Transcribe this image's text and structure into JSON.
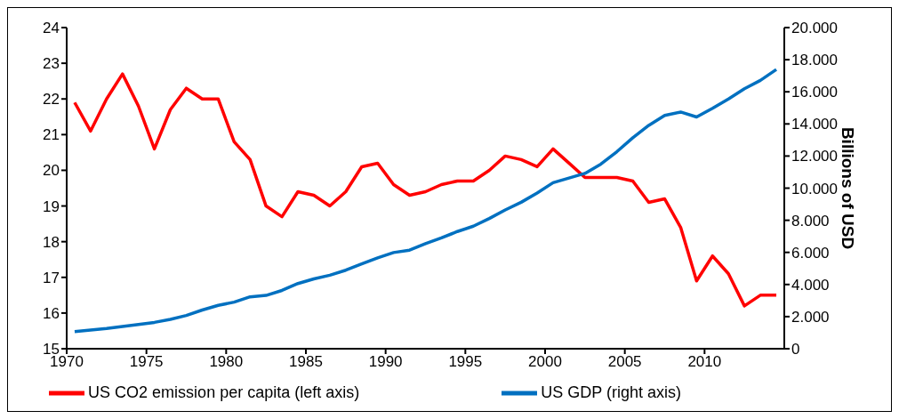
{
  "chart_data": {
    "type": "line",
    "x": [
      1970.5,
      1971.5,
      1972.5,
      1973.5,
      1974.5,
      1975.5,
      1976.5,
      1977.5,
      1978.5,
      1979.5,
      1980.5,
      1981.5,
      1982.5,
      1983.5,
      1984.5,
      1985.5,
      1986.5,
      1987.5,
      1988.5,
      1989.5,
      1990.5,
      1991.5,
      1992.5,
      1993.5,
      1994.5,
      1995.5,
      1996.5,
      1997.5,
      1998.5,
      1999.5,
      2000.5,
      2001.5,
      2002.5,
      2003.5,
      2004.5,
      2005.5,
      2006.5,
      2007.5,
      2008.5,
      2009.5,
      2010.5,
      2011.5,
      2012.5,
      2013.5,
      2014.5
    ],
    "series": [
      {
        "name": "US CO2 emission per capita (left axis)",
        "color": "#ff0000",
        "axis": "y",
        "values": [
          21.9,
          21.1,
          22.0,
          22.7,
          21.8,
          20.6,
          21.7,
          22.3,
          22.0,
          22.0,
          20.8,
          20.3,
          19.0,
          18.7,
          19.4,
          19.3,
          19.0,
          19.4,
          20.1,
          20.2,
          19.6,
          19.3,
          19.4,
          19.6,
          19.7,
          19.7,
          20.0,
          20.4,
          20.3,
          20.1,
          20.6,
          20.2,
          19.8,
          19.8,
          19.8,
          19.7,
          19.1,
          19.2,
          18.4,
          16.9,
          17.6,
          17.1,
          16.2,
          16.5,
          16.5
        ]
      },
      {
        "name": "US GDP (right axis)",
        "color": "#0070c0",
        "axis": "y2",
        "values": [
          1070,
          1160,
          1260,
          1390,
          1510,
          1640,
          1830,
          2070,
          2410,
          2700,
          2900,
          3230,
          3320,
          3630,
          4060,
          4350,
          4580,
          4890,
          5280,
          5660,
          5990,
          6140,
          6540,
          6900,
          7300,
          7630,
          8110,
          8640,
          9120,
          9700,
          10340,
          10630,
          10920,
          11500,
          12270,
          13140,
          13910,
          14530,
          14740,
          14430,
          14970,
          15550,
          16190,
          16710,
          17390
        ]
      }
    ],
    "xlim": [
      1970,
      2015
    ],
    "xticks": [
      1970,
      1975,
      1980,
      1985,
      1990,
      1995,
      2000,
      2005,
      2010
    ],
    "ylim": [
      15,
      24
    ],
    "yticks": [
      15,
      16,
      17,
      18,
      19,
      20,
      21,
      22,
      23,
      24
    ],
    "y2label": "Billions of USD",
    "y2lim": [
      0,
      20000
    ],
    "y2ticks": [
      {
        "value": 0,
        "label": "0"
      },
      {
        "value": 2000,
        "label": "2.000"
      },
      {
        "value": 4000,
        "label": "4.000"
      },
      {
        "value": 6000,
        "label": "6.000"
      },
      {
        "value": 8000,
        "label": "8.000"
      },
      {
        "value": 10000,
        "label": "10.000"
      },
      {
        "value": 12000,
        "label": "12.000"
      },
      {
        "value": 14000,
        "label": "14.000"
      },
      {
        "value": 16000,
        "label": "16.000"
      },
      {
        "value": 18000,
        "label": "18.000"
      },
      {
        "value": 20000,
        "label": "20.000"
      }
    ],
    "grid": false,
    "legend": "bottom",
    "marker": "none",
    "line_style": "solid"
  }
}
